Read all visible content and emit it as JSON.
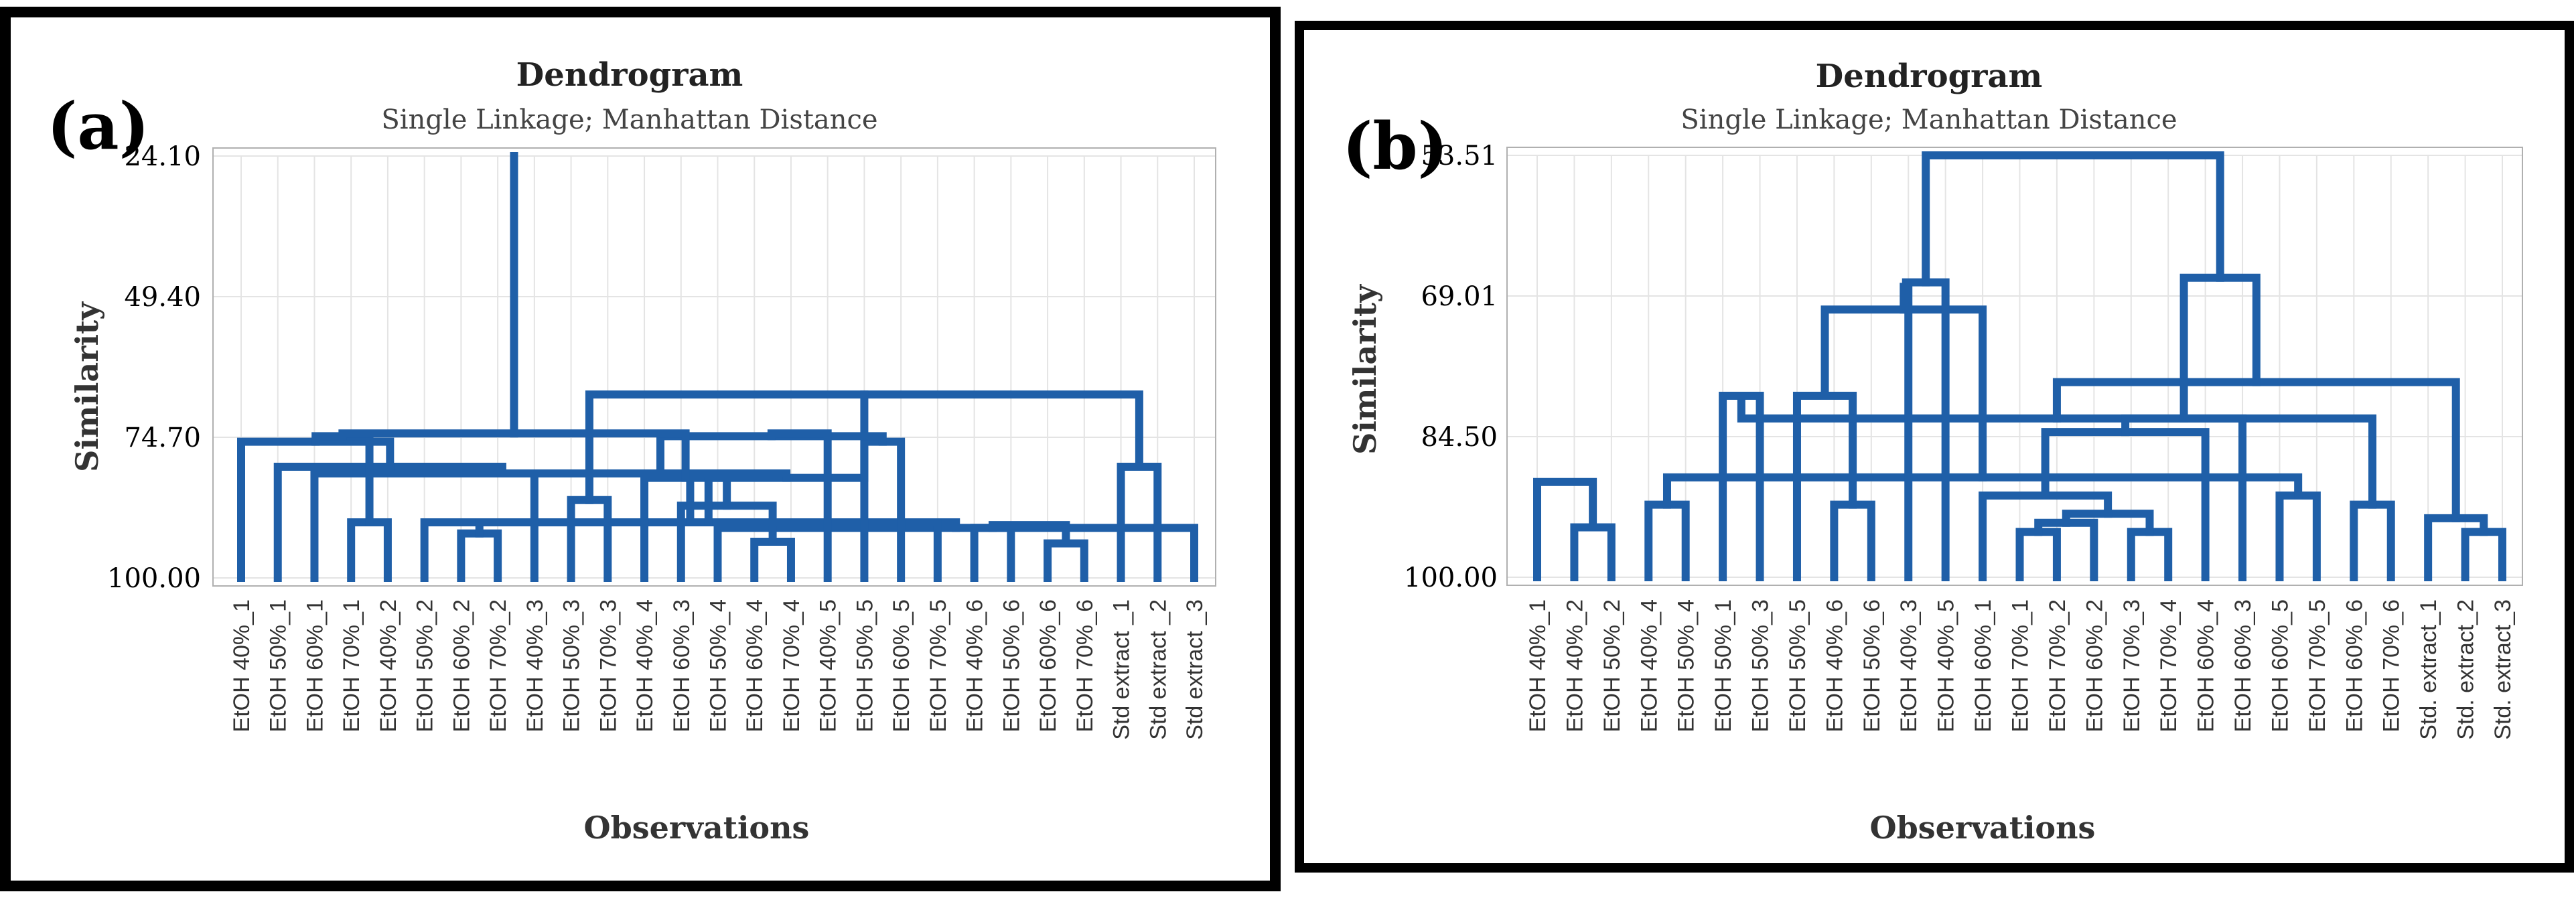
{
  "chart_data": [
    {
      "type": "dendrogram",
      "panel_label": "(a)",
      "title": "Dendrogram",
      "subtitle": "Single Linkage; Manhattan Distance",
      "ylabel": "Similarity",
      "xlabel": "Observations",
      "yticks": [
        "24.10",
        "49.40",
        "74.70",
        "100.00"
      ],
      "ylim": [
        24.1,
        100.0
      ],
      "observations": [
        "EtOH 40%_1",
        "EtOH 50%_1",
        "EtOH 60%_1",
        "EtOH 70%_1",
        "EtOH 40%_2",
        "EtOH 50%_2",
        "EtOH 60%_2",
        "EtOH 70%_2",
        "EtOH 40%_3",
        "EtOH 50%_3",
        "EtOH 70%_3",
        "EtOH 40%_4",
        "EtOH 60%_3",
        "EtOH 50%_4",
        "EtOH 60%_4",
        "EtOH 70%_4",
        "EtOH 40%_5",
        "EtOH 50%_5",
        "EtOH 60%_5",
        "EtOH 70%_5",
        "EtOH 40%_6",
        "EtOH 50%_6",
        "EtOH 60%_6",
        "EtOH 70%_6",
        "Std extract _1",
        "Std extract _2",
        "Std extract _3"
      ],
      "merges": [
        [
          14,
          15,
          93.5
        ],
        [
          22,
          23,
          93.8
        ],
        [
          20,
          21,
          91.0
        ],
        [
          13,
          26,
          91.0
        ],
        [
          6,
          7,
          92.0
        ],
        [
          29,
          28,
          90.5
        ],
        [
          3,
          4,
          90.0
        ],
        [
          30,
          5,
          90.0
        ],
        [
          12,
          27,
          87.0
        ],
        [
          19,
          31,
          90.0
        ],
        [
          9,
          10,
          86.0
        ],
        [
          24,
          25,
          80.0
        ],
        [
          37,
          38,
          67.0
        ],
        [
          11,
          35,
          82.0
        ],
        [
          36,
          39,
          82.0
        ],
        [
          2,
          34,
          81.2
        ],
        [
          1,
          42,
          80.0
        ],
        [
          17,
          18,
          75.5
        ],
        [
          8,
          41,
          81.2
        ],
        [
          0,
          43,
          75.5
        ],
        [
          45,
          44,
          74.5
        ],
        [
          46,
          33,
          74.5
        ],
        [
          16,
          47,
          74.0
        ],
        [
          48,
          40,
          74.0
        ]
      ]
    },
    {
      "type": "dendrogram",
      "panel_label": "(b)",
      "title": "Dendrogram",
      "subtitle": "Single Linkage; Manhattan Distance",
      "ylabel": "Similarity",
      "xlabel": "Observations",
      "yticks": [
        "53.51",
        "69.01",
        "84.50",
        "100.00"
      ],
      "ylim": [
        53.51,
        100.0
      ],
      "observations": [
        "EtOH 40%_1",
        "EtOH 40%_2",
        "EtOH 50%_2",
        "EtOH 40%_4",
        "EtOH 50%_4",
        "EtOH 50%_1",
        "EtOH 50%_3",
        "EtOH 50%_5",
        "EtOH 40%_6",
        "EtOH 50%_6",
        "EtOH 40%_3",
        "EtOH 40%_5",
        "EtOH 60%_1",
        "EtOH 70%_1",
        "EtOH 70%_2",
        "EtOH 60%_2",
        "EtOH 70%_3",
        "EtOH 70%_4",
        "EtOH 60%_4",
        "EtOH 60%_3",
        "EtOH 60%_5",
        "EtOH 70%_5",
        "EtOH 60%_6",
        "EtOH 70%_6",
        "Std. extract_1",
        "Std. extract_2",
        "Std. extract_3"
      ],
      "merges": [
        [
          13,
          14,
          95.0
        ],
        [
          1,
          2,
          94.5
        ],
        [
          25,
          26,
          95.0
        ],
        [
          16,
          17,
          95.0
        ],
        [
          27,
          15,
          94.0
        ],
        [
          24,
          29,
          93.5
        ],
        [
          30,
          31,
          93.0
        ],
        [
          8,
          9,
          92.0
        ],
        [
          22,
          23,
          92.0
        ],
        [
          3,
          4,
          92.0
        ],
        [
          20,
          21,
          91.0
        ],
        [
          12,
          33,
          91.0
        ],
        [
          0,
          28,
          89.5
        ],
        [
          36,
          37,
          89.0
        ],
        [
          5,
          6,
          80.0
        ],
        [
          7,
          34,
          80.0
        ],
        [
          38,
          18,
          84.0
        ],
        [
          41,
          35,
          82.5
        ],
        [
          43,
          19,
          82.5
        ],
        [
          44,
          32,
          78.5
        ],
        [
          42,
          40,
          70.5
        ],
        [
          47,
          10,
          68.0
        ],
        [
          48,
          11,
          67.5
        ],
        [
          45,
          46,
          67.0
        ],
        [
          49,
          50,
          53.51
        ]
      ]
    }
  ]
}
